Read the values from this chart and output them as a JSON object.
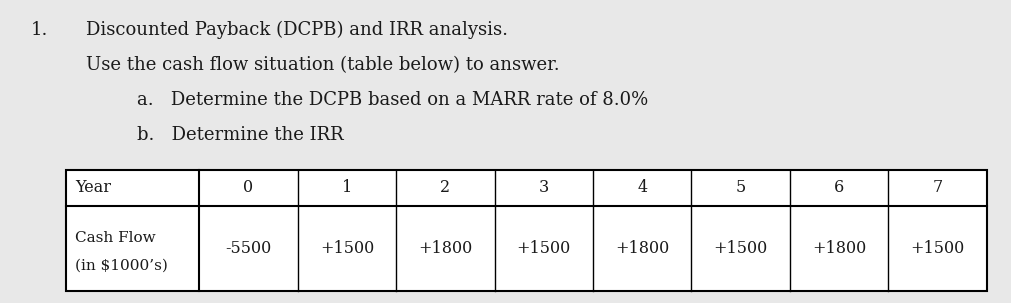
{
  "title_number": "1.",
  "title_line1": "Discounted Payback (DCPB) and IRR analysis.",
  "title_line2": "Use the cash flow situation (table below) to answer.",
  "item_a": "a.   Determine the DCPB based on a MARR rate of 8.0%",
  "item_b": "b.   Determine the IRR",
  "years": [
    "Year",
    "0",
    "1",
    "2",
    "3",
    "4",
    "5",
    "6",
    "7"
  ],
  "cash_flow_label_1": "Cash Flow",
  "cash_flow_label_2": "(in $1000’s)",
  "cash_flows": [
    "-5500",
    "+1500",
    "+1800",
    "+1500",
    "+1800",
    "+1500",
    "+1800",
    "+1500"
  ],
  "bg_color": "#e8e8e8",
  "table_bg": "#ffffff",
  "text_color": "#1a1a1a",
  "font_size_title": 13.0,
  "font_size_table": 11.5
}
